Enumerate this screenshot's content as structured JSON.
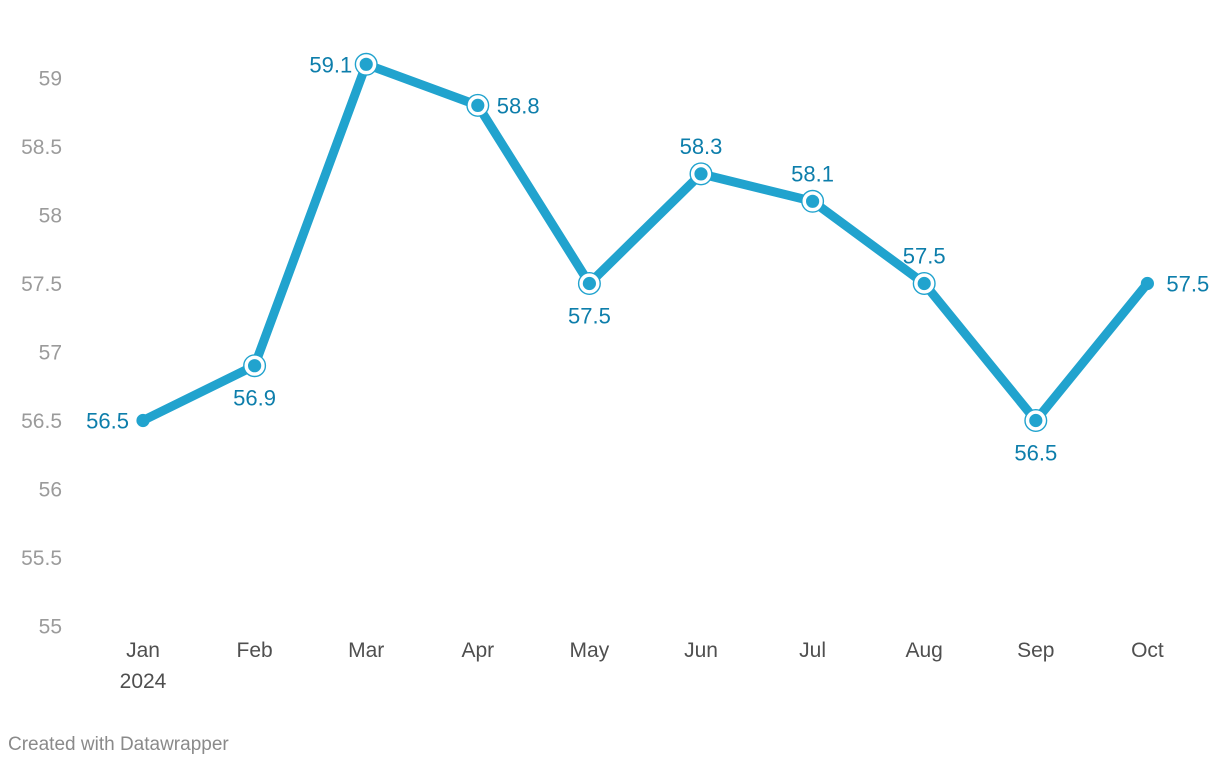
{
  "chart_data": {
    "type": "line",
    "x": [
      "Jan",
      "Feb",
      "Mar",
      "Apr",
      "May",
      "Jun",
      "Jul",
      "Aug",
      "Sep",
      "Oct"
    ],
    "x_sublabels": {
      "Jan": "2024"
    },
    "values": [
      56.5,
      56.9,
      59.1,
      58.8,
      57.5,
      58.3,
      58.1,
      57.5,
      56.5,
      57.5
    ],
    "value_labels": [
      "56.5",
      "56.9",
      "59.1",
      "58.8",
      "57.5",
      "58.3",
      "58.1",
      "57.5",
      "56.5",
      "57.5"
    ],
    "label_placements": [
      "left",
      "below",
      "left",
      "right",
      "below",
      "above",
      "above",
      "above",
      "below",
      "right"
    ],
    "y_ticks": [
      55,
      55.5,
      56,
      56.5,
      57,
      57.5,
      58,
      58.5,
      59
    ],
    "y_tick_labels": [
      "55",
      "55.5",
      "56",
      "56.5",
      "57",
      "57.5",
      "58",
      "58.5",
      "59"
    ],
    "ylim": [
      55,
      59.35
    ],
    "xlabel": "",
    "ylabel": "",
    "title": "",
    "grid": false,
    "legend": "none",
    "marker_style": {
      "endpoints": "plain-dot",
      "interior": "dot-with-ring"
    },
    "colors": {
      "line": "#21a3ce",
      "value_label": "#0d7eab",
      "y_tick_label": "#9b9b9b",
      "x_tick_label": "#4f4f4f",
      "background": "#ffffff"
    }
  },
  "footer": {
    "attribution": "Created with Datawrapper"
  }
}
